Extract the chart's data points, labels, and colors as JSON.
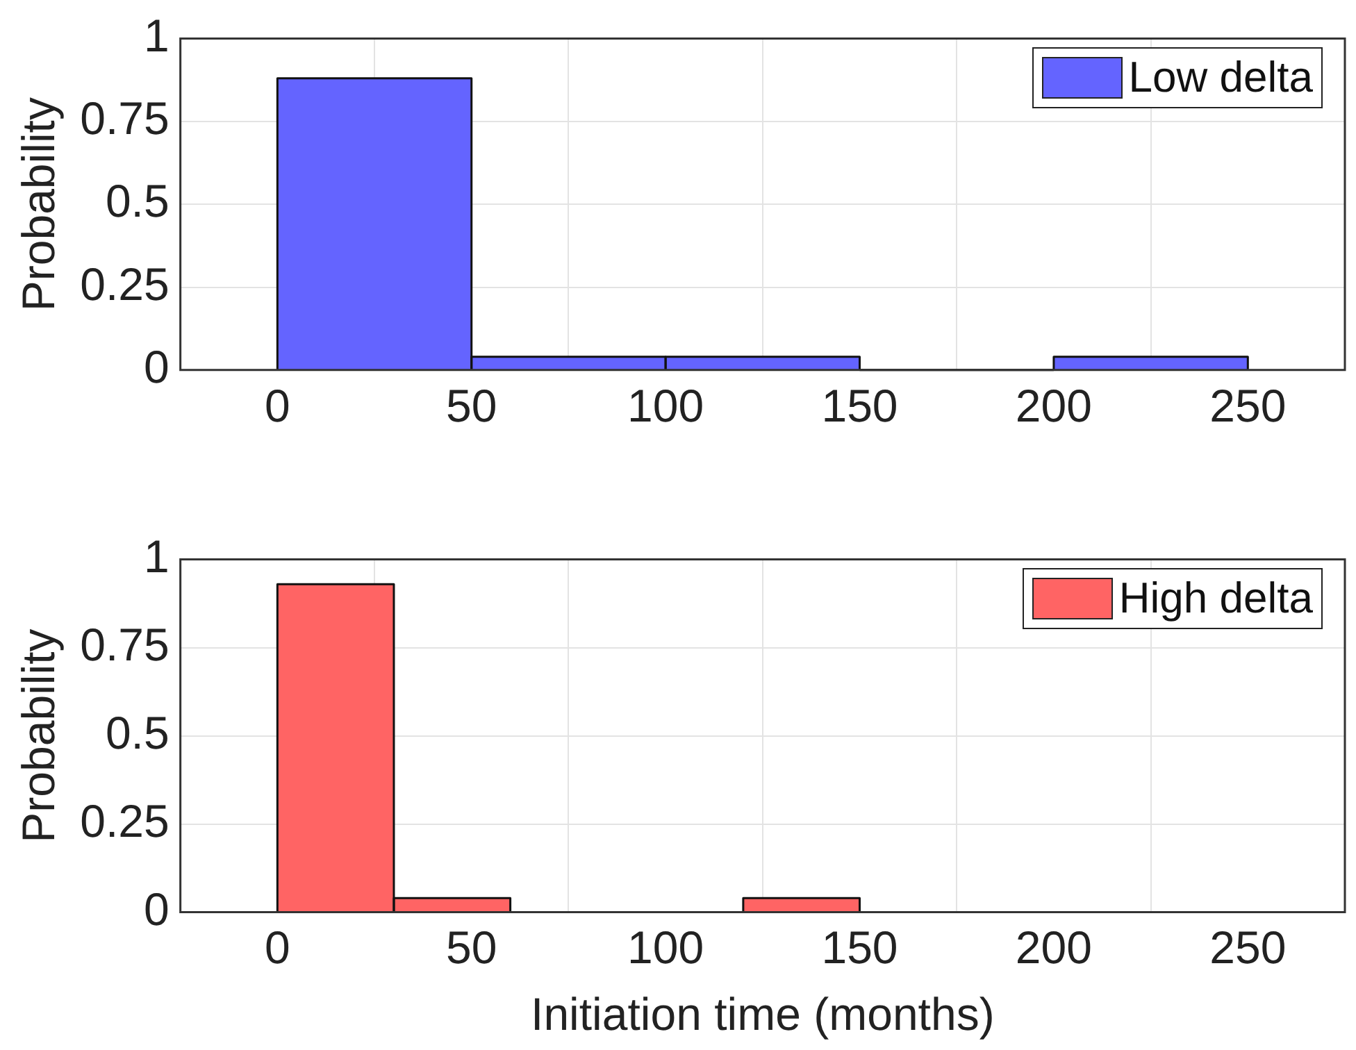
{
  "chart_data": [
    {
      "type": "histogram",
      "ylabel": "Probability",
      "bins": [
        0,
        50,
        100,
        150,
        200,
        250
      ],
      "series": [
        {
          "name": "Low delta",
          "color": "#6464ff",
          "values": [
            0.88,
            0.04,
            0.04,
            0,
            0.04
          ]
        }
      ],
      "xlim": [
        -25,
        275
      ],
      "xticks": [
        0,
        50,
        100,
        150,
        200,
        250
      ],
      "ylim": [
        0,
        1
      ],
      "yticks": [
        0,
        0.25,
        0.5,
        0.75,
        1
      ],
      "grid": true,
      "legend": "top right"
    },
    {
      "type": "histogram",
      "xlabel": "Initiation time (months)",
      "ylabel": "Probability",
      "bins": [
        0,
        30,
        60,
        90,
        120,
        150
      ],
      "series": [
        {
          "name": "High delta",
          "color": "#ff6464",
          "values": [
            0.93,
            0.04,
            0,
            0,
            0.04
          ]
        }
      ],
      "xlim": [
        -25,
        275
      ],
      "xticks": [
        0,
        50,
        100,
        150,
        200,
        250
      ],
      "ylim": [
        0,
        1
      ],
      "yticks": [
        0,
        0.25,
        0.5,
        0.75,
        1
      ],
      "grid": true,
      "legend": "top right"
    }
  ]
}
